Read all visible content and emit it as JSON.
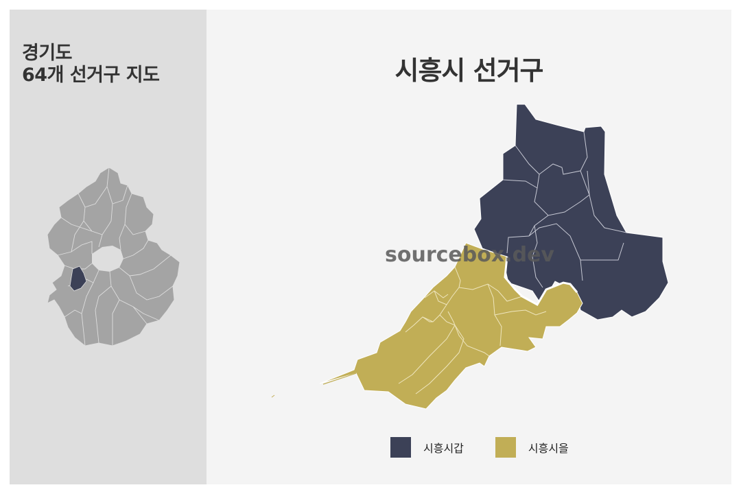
{
  "sidebar": {
    "title": "경기도\n64개 선거구 지도"
  },
  "main": {
    "title": "시흥시 선거구",
    "watermark": "sourcebox.dev"
  },
  "legend": {
    "items": [
      {
        "label": "시흥시갑",
        "color": "#3c4157"
      },
      {
        "label": "시흥시을",
        "color": "#c1ae56"
      }
    ]
  },
  "colors": {
    "sidebar_bg": "#dedede",
    "main_bg": "#f4f4f4",
    "province_fill": "#a4a4a4",
    "highlight_fill": "#3c4157",
    "gap_district": "#3c4157",
    "eul_district": "#c1ae56"
  }
}
